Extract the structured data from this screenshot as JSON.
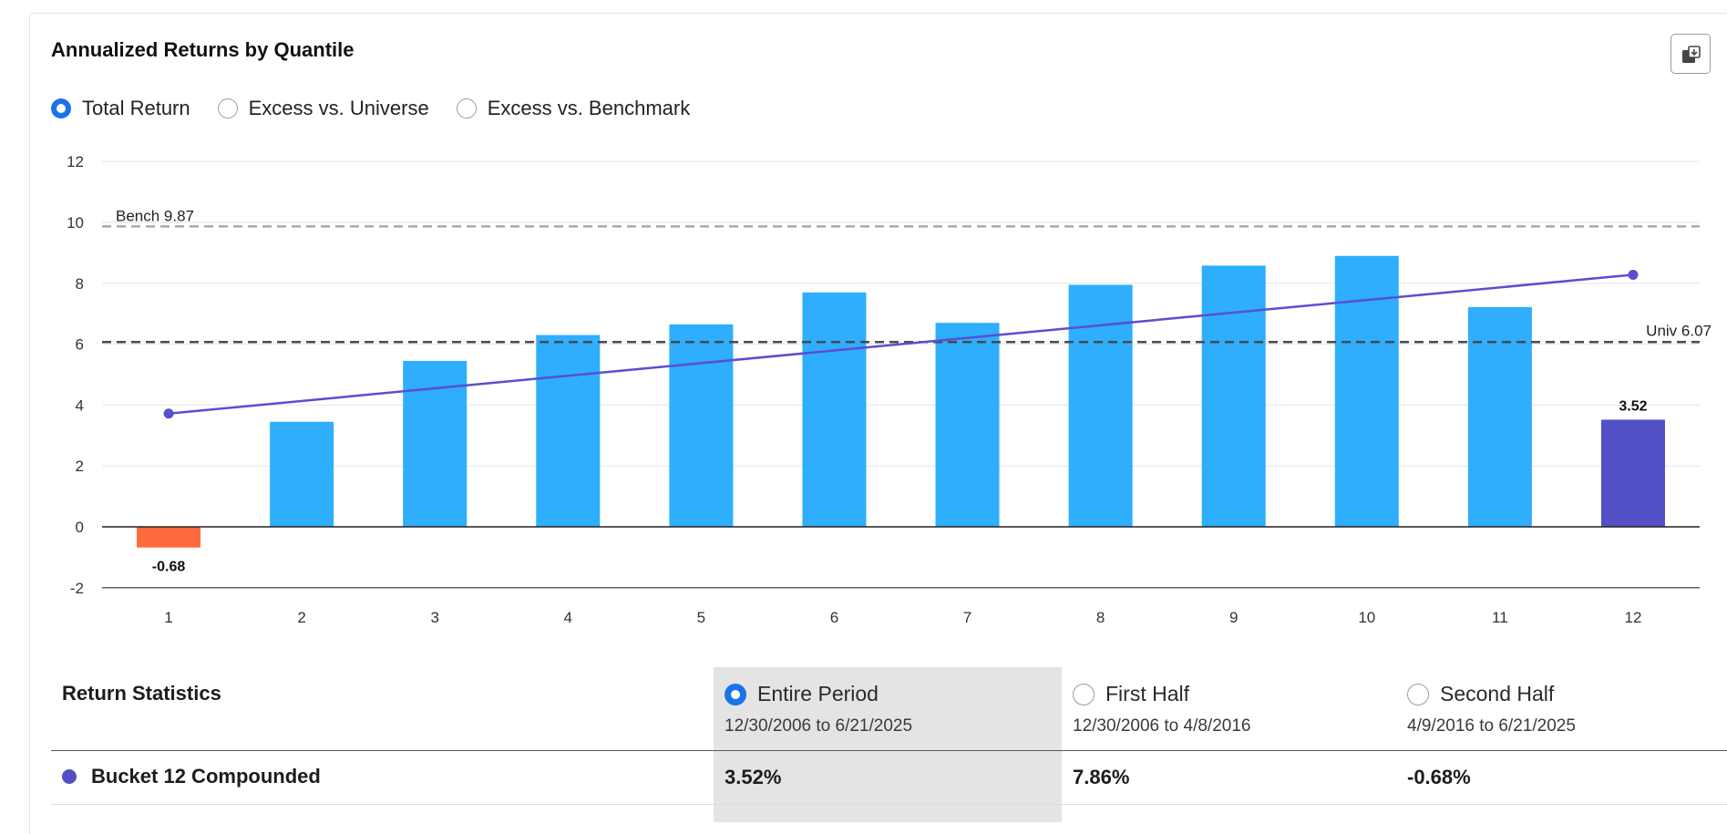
{
  "header": {
    "title": "Annualized Returns by Quantile",
    "export_icon": "export-image-icon"
  },
  "return_type_options": [
    {
      "label": "Total Return",
      "selected": true
    },
    {
      "label": "Excess vs. Universe",
      "selected": false
    },
    {
      "label": "Excess vs. Benchmark",
      "selected": false
    }
  ],
  "colors": {
    "bar": "#2eaefc",
    "negative_bar": "#ff6a3d",
    "highlight_bar": "#5350c6",
    "trend_line": "#5a4fcf",
    "benchmark_line": "#a9a9a9",
    "universe_line": "#4a4a4a",
    "radio_selected": "#1a73e8"
  },
  "chart_data": {
    "type": "bar",
    "categories": [
      "1",
      "2",
      "3",
      "4",
      "5",
      "6",
      "7",
      "8",
      "9",
      "10",
      "11",
      "12"
    ],
    "values": [
      -0.68,
      3.45,
      5.45,
      6.3,
      6.65,
      7.7,
      6.7,
      7.95,
      8.58,
      8.9,
      7.22,
      3.52
    ],
    "trend": {
      "start": 3.72,
      "end": 8.28
    },
    "reference_lines": [
      {
        "label": "Bench 9.87",
        "value": 9.87
      },
      {
        "label": "Univ 6.07",
        "value": 6.07
      }
    ],
    "data_labels": [
      {
        "category": "1",
        "text": "-0.68"
      },
      {
        "category": "12",
        "text": "3.52"
      }
    ],
    "yticks": [
      -2,
      0,
      2,
      4,
      6,
      8,
      10,
      12
    ],
    "ylim": [
      -2,
      12
    ],
    "grid": true
  },
  "stats": {
    "title": "Return Statistics",
    "periods": [
      {
        "label": "Entire Period",
        "range": "12/30/2006 to 6/21/2025",
        "value": "3.52%",
        "selected": true
      },
      {
        "label": "First Half",
        "range": "12/30/2006 to 4/8/2016",
        "value": "7.86%",
        "selected": false
      },
      {
        "label": "Second Half",
        "range": "4/9/2016 to 6/21/2025",
        "value": "-0.68%",
        "selected": false
      }
    ],
    "row_label": "Bucket 12 Compounded"
  }
}
